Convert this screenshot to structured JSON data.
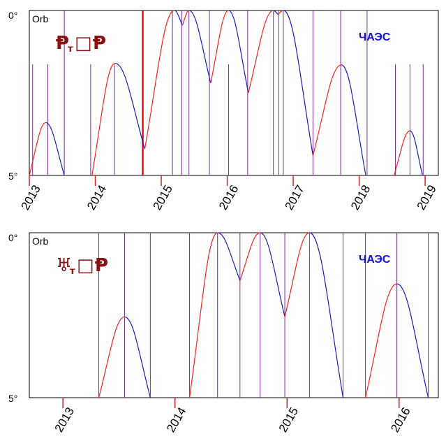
{
  "colors": {
    "rising": "#ff2020",
    "falling": "#1a1ad0",
    "event_line": "#7a2aa0",
    "main_line": "#dd1111",
    "tick": "#cc2222",
    "label": "#8b1111"
  },
  "chart_data": [
    {
      "type": "line",
      "orb_label": "Orb",
      "y_top_label": "0°",
      "y_bottom_label": "5°",
      "aspect": {
        "left": "Ᵽ",
        "sub": "т",
        "mid": "□",
        "right": "Ᵽ"
      },
      "station_label": "ЧАЭС",
      "x_range": [
        2013.0,
        2019.2
      ],
      "ylim": [
        0,
        5
      ],
      "tick_labels": [
        "2013",
        "2014",
        "2015",
        "2016",
        "2017",
        "2018",
        "2019"
      ],
      "tick_values": [
        2013,
        2014,
        2015,
        2016,
        2017,
        2018,
        2019
      ],
      "series_points": [
        [
          2013.0,
          5
        ],
        [
          2013.25,
          3.4
        ],
        [
          2013.53,
          5
        ],
        [
          2013.95,
          5
        ],
        [
          2014.3,
          1.6
        ],
        [
          2014.75,
          4.2
        ],
        [
          2015.2,
          0
        ],
        [
          2015.32,
          0.45
        ],
        [
          2015.42,
          0
        ],
        [
          2015.75,
          2.2
        ],
        [
          2016.02,
          0
        ],
        [
          2016.32,
          2.5
        ],
        [
          2016.7,
          0
        ],
        [
          2016.77,
          0.12
        ],
        [
          2016.85,
          0
        ],
        [
          2017.3,
          4.4
        ],
        [
          2017.73,
          1.65
        ],
        [
          2018.1,
          5
        ],
        [
          2018.53,
          5
        ],
        [
          2018.77,
          3.65
        ],
        [
          2018.96,
          5
        ]
      ],
      "event_lines": [
        2013.05,
        2013.28,
        2013.53,
        2013.93,
        2014.29,
        2015.17,
        2015.31,
        2015.42,
        2015.73,
        2016.02,
        2016.31,
        2016.7,
        2016.78,
        2016.85,
        2017.3,
        2017.72,
        2018.12,
        2018.55,
        2018.77,
        2018.97
      ],
      "main_event": 2014.72
    },
    {
      "type": "line",
      "orb_label": "Orb",
      "y_top_label": "0°",
      "y_bottom_label": "5°",
      "aspect": {
        "left": "♅",
        "sub": "т",
        "mid": "□",
        "right": "Ᵽ"
      },
      "station_label": "ЧАЭС",
      "x_range": [
        2012.7,
        2016.35
      ],
      "ylim": [
        0,
        5
      ],
      "tick_labels": [
        "2013",
        "2014",
        "2015",
        "2016"
      ],
      "tick_values": [
        2013,
        2014,
        2015,
        2016
      ],
      "series_points": [
        [
          2013.32,
          5
        ],
        [
          2013.55,
          2.55
        ],
        [
          2013.78,
          5
        ],
        [
          2014.13,
          5
        ],
        [
          2014.38,
          0
        ],
        [
          2014.58,
          1.45
        ],
        [
          2014.76,
          0
        ],
        [
          2014.98,
          2.55
        ],
        [
          2015.2,
          0
        ],
        [
          2015.5,
          5
        ],
        [
          2015.7,
          5
        ],
        [
          2015.98,
          1.55
        ],
        [
          2016.26,
          5
        ]
      ],
      "event_lines": [
        2013.32,
        2013.55,
        2013.78,
        2014.13,
        2014.38,
        2014.58,
        2014.76,
        2014.98,
        2015.2,
        2015.5,
        2015.7,
        2015.98,
        2016.26
      ]
    }
  ]
}
